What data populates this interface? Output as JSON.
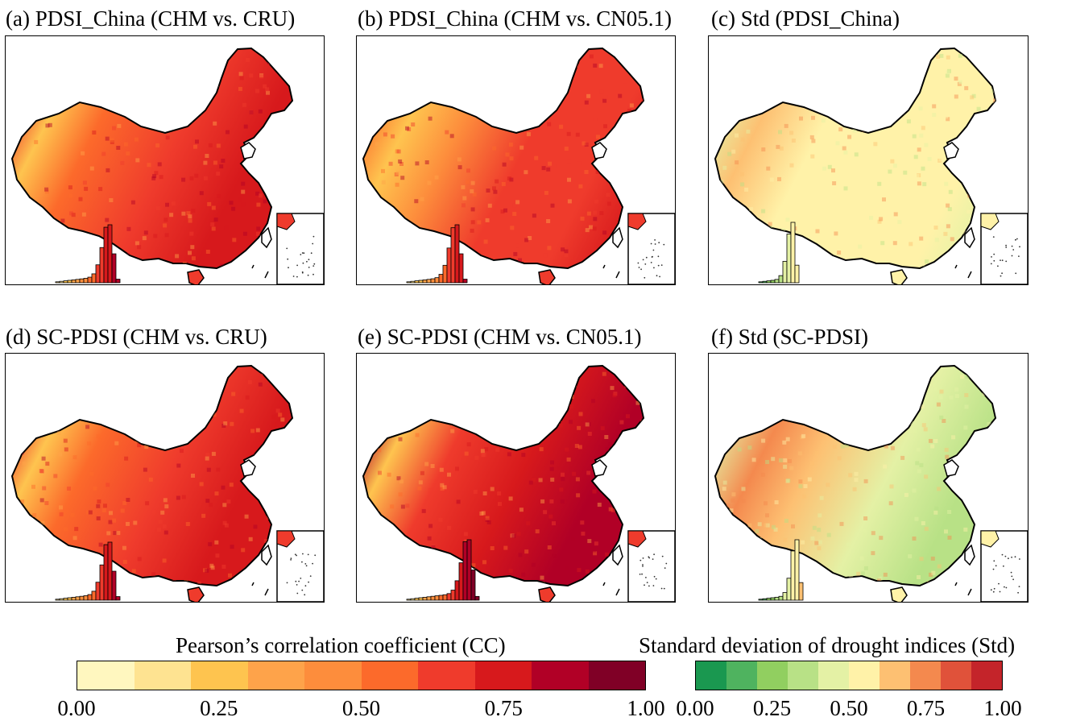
{
  "panels": [
    {
      "label": "(a) PDSI_China (CHM vs. CRU)",
      "scale": "cc",
      "scheme": "warm"
    },
    {
      "label": "(b) PDSI_China (CHM vs. CN05.1)",
      "scale": "cc",
      "scheme": "mixed"
    },
    {
      "label": "(c) Std (PDSI_China)",
      "scale": "std",
      "scheme": "std-light"
    },
    {
      "label": "(d) SC-PDSI (CHM vs. CRU)",
      "scale": "cc",
      "scheme": "warm"
    },
    {
      "label": "(e) SC-PDSI (CHM vs. CN05.1)",
      "scale": "cc",
      "scheme": "dark"
    },
    {
      "label": "(f) Std (SC-PDSI)",
      "scale": "std",
      "scheme": "std-green"
    }
  ],
  "colorbars": {
    "cc": {
      "title": "Pearson’s correlation coefficient (CC)",
      "ticks": [
        "0.00",
        "0.25",
        "0.50",
        "0.75",
        "1.00"
      ],
      "colors": [
        "#fff7bf",
        "#fee391",
        "#fec44f",
        "#fea34a",
        "#fd8d3c",
        "#fc6a2b",
        "#ef3b2c",
        "#d7191c",
        "#b10026",
        "#800026"
      ]
    },
    "std": {
      "title": "Standard deviation of drought indices (Std)",
      "ticks": [
        "0.00",
        "0.25",
        "0.50",
        "0.75",
        "1.00"
      ],
      "colors": [
        "#1a9850",
        "#4fb35f",
        "#91cf60",
        "#b8e186",
        "#e4f1a5",
        "#fff2a8",
        "#fdc072",
        "#f4894e",
        "#e0523a",
        "#c4242a"
      ]
    }
  }
}
